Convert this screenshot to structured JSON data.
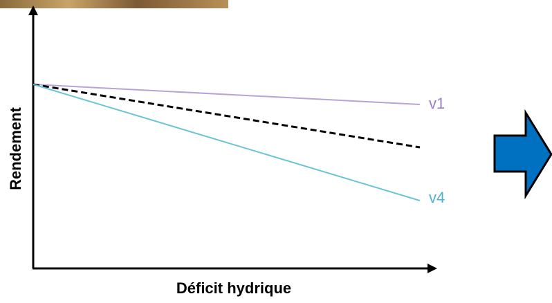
{
  "axes": {
    "x_label": "Déficit hydrique",
    "y_label": "Rendement"
  },
  "lines": [
    {
      "label": "v1"
    },
    {
      "label": "v4"
    }
  ]
}
